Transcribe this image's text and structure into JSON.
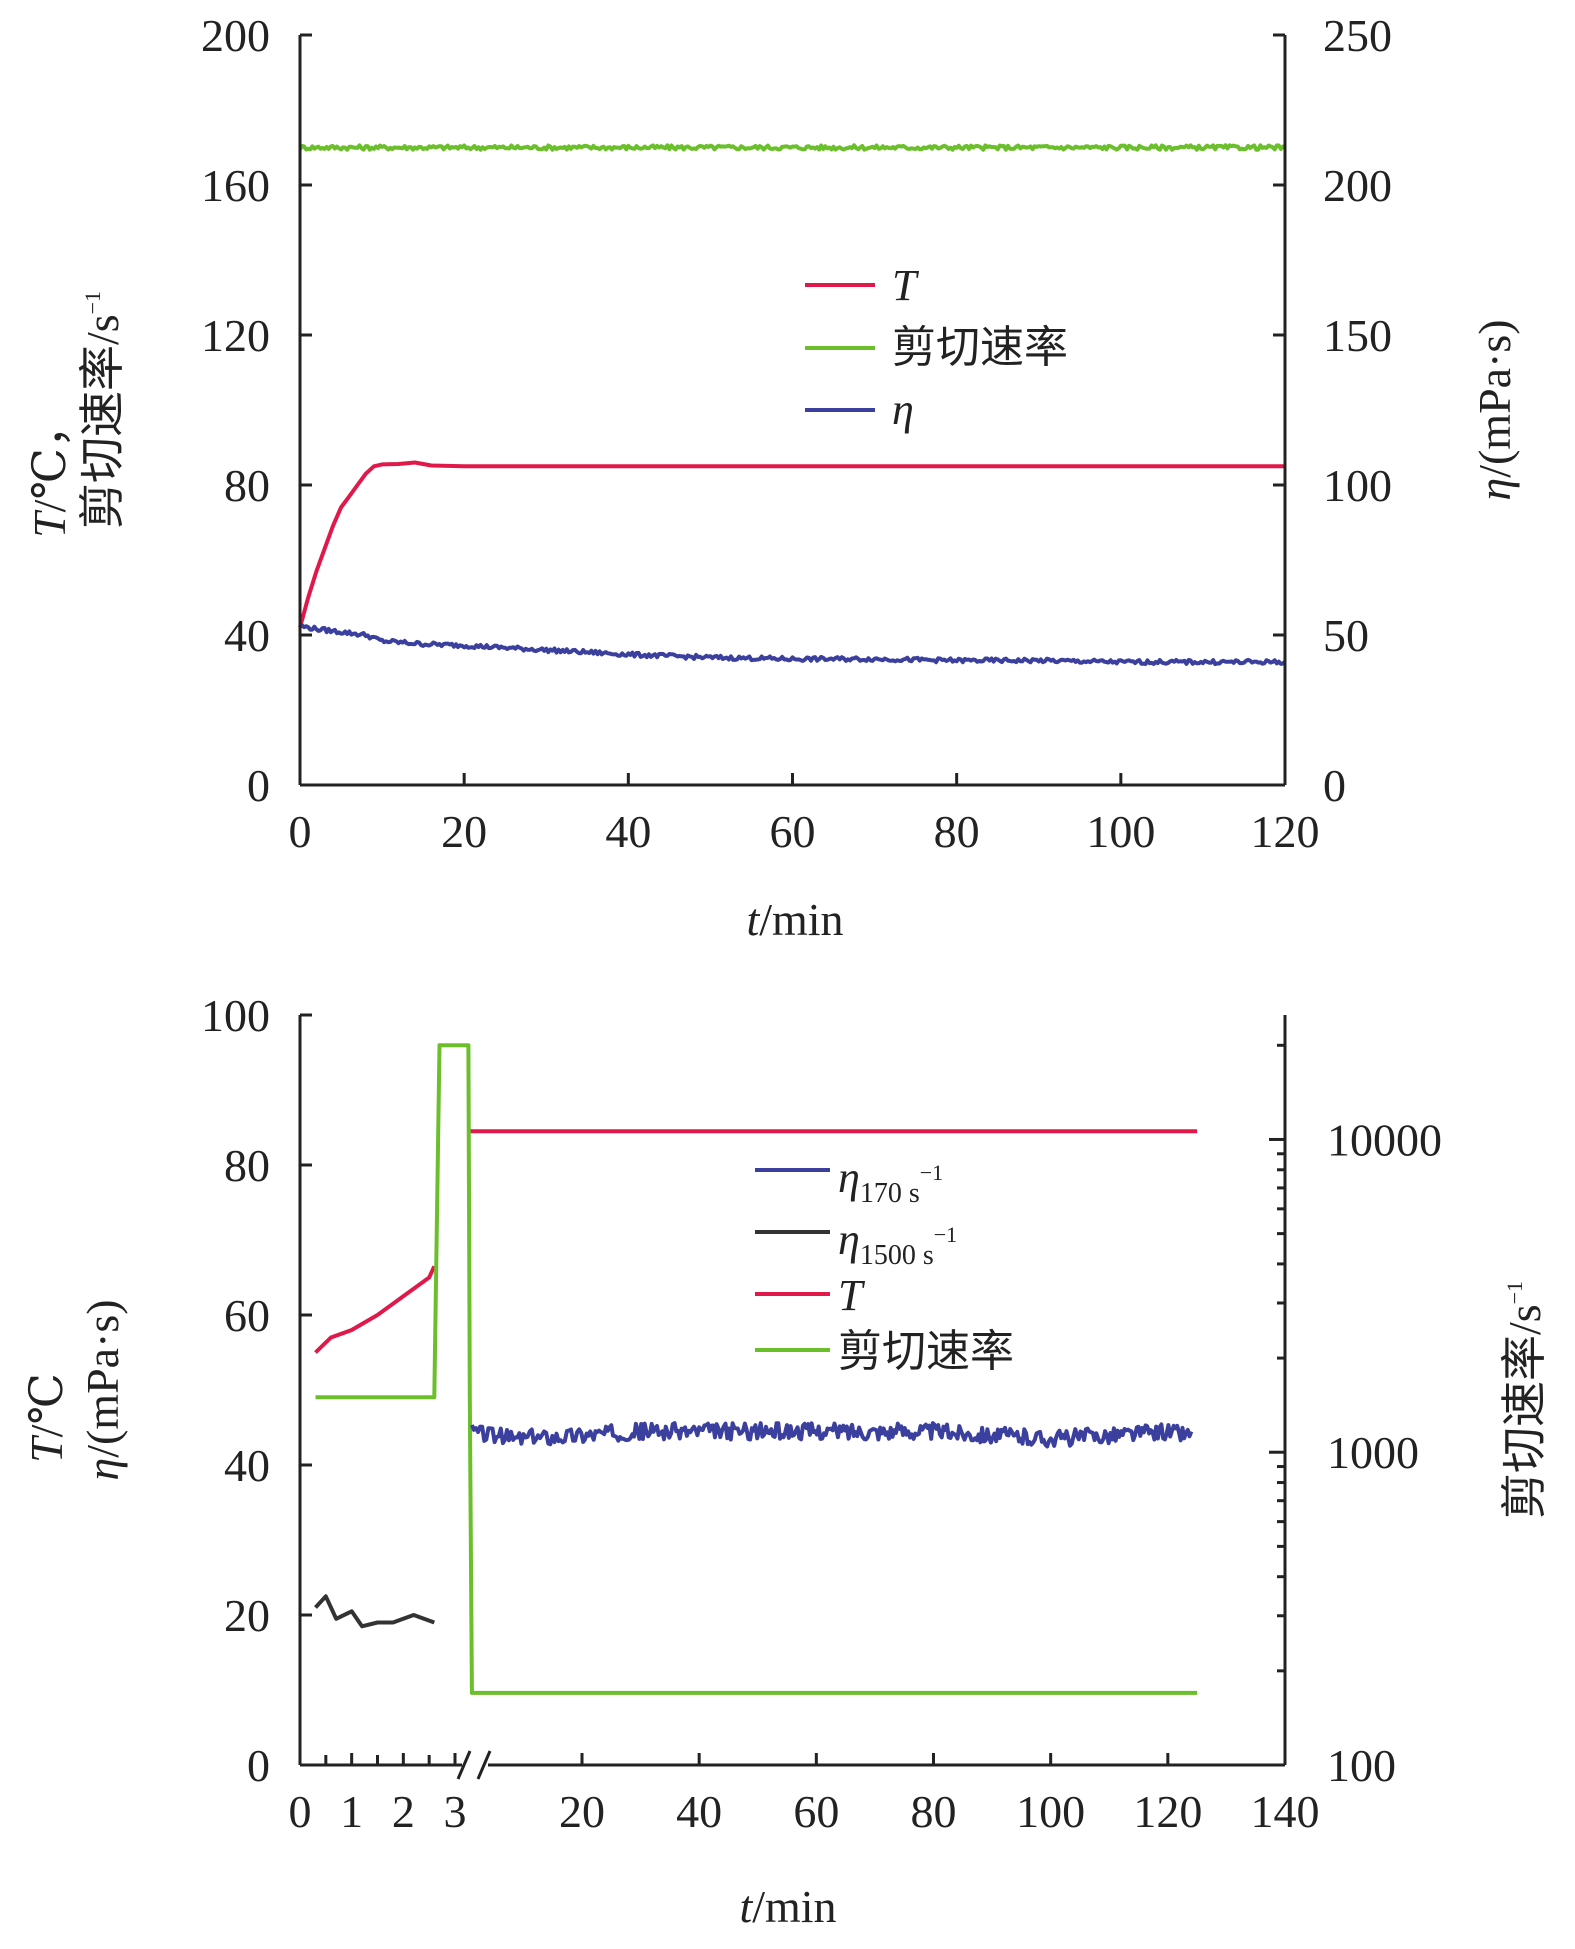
{
  "colors": {
    "axis": "#222222",
    "T": "#e0194a",
    "shear": "#6abf2a",
    "eta": "#3b3f9e",
    "eta1500": "#333333",
    "T_bottom": "#d81b60"
  },
  "chart_data": [
    {
      "type": "line",
      "x_label": {
        "italic": "t",
        "rest": "/min"
      },
      "y_left_label": {
        "line1_italic": "T",
        "line1_rest": "/℃，",
        "line2": "剪切速率/s",
        "line2_sup": "−1"
      },
      "y_right_label": {
        "italic": "η",
        "rest": "/(mPa·s)"
      },
      "xlim": [
        0,
        120
      ],
      "ylim_left": [
        0,
        200
      ],
      "ylim_right": [
        0,
        250
      ],
      "x_ticks": [
        "0",
        "20",
        "40",
        "60",
        "80",
        "100",
        "120"
      ],
      "y_left_ticks": [
        "0",
        "40",
        "80",
        "120",
        "160",
        "200"
      ],
      "y_right_ticks": [
        "0",
        "50",
        "100",
        "150",
        "200",
        "250"
      ],
      "legend": [
        {
          "label": "T",
          "italic": true,
          "color_key": "T"
        },
        {
          "label": "剪切速率",
          "italic": false,
          "color_key": "shear"
        },
        {
          "label": "η",
          "italic": true,
          "color_key": "eta"
        }
      ],
      "series": [
        {
          "name": "T",
          "axis": "left",
          "color_key": "T",
          "x": [
            0,
            1,
            2,
            3,
            4,
            5,
            6,
            7,
            8,
            9,
            10,
            12,
            14,
            16,
            20,
            40,
            60,
            80,
            100,
            120
          ],
          "y": [
            42,
            50,
            57,
            63,
            69,
            74,
            77,
            80,
            83,
            85,
            85.5,
            85.6,
            86,
            85.2,
            85,
            85,
            85,
            85,
            85,
            85
          ]
        },
        {
          "name": "剪切速率",
          "axis": "left",
          "color_key": "shear",
          "x": [
            0,
            120
          ],
          "y": [
            170,
            170
          ],
          "noise": 0.6
        },
        {
          "name": "η",
          "axis": "right",
          "color_key": "eta",
          "x": [
            0,
            2,
            5,
            8,
            10,
            15,
            20,
            30,
            40,
            50,
            60,
            70,
            80,
            90,
            100,
            110,
            120
          ],
          "y": [
            53,
            52,
            51,
            50,
            48,
            47,
            46.5,
            45,
            43.5,
            42.5,
            42,
            42,
            41.5,
            41.5,
            41,
            41,
            41
          ],
          "noise": 0.7
        }
      ]
    },
    {
      "type": "line",
      "x_label": {
        "italic": "t",
        "rest": "/min"
      },
      "y_left_label": {
        "line1_italic": "T",
        "line1_rest": "/℃",
        "line2_italic": "η",
        "line2_rest": "/(mPa·s)"
      },
      "y_right_label": {
        "text": "剪切速率/s",
        "sup": "−1"
      },
      "y_right_scale": "log",
      "ylim_left": [
        0,
        100
      ],
      "ylim_right": [
        100,
        25000
      ],
      "x_ticks_zoom": [
        "0",
        "1",
        "2",
        "3"
      ],
      "x_ticks_main": [
        "20",
        "40",
        "60",
        "80",
        "100",
        "120",
        "140"
      ],
      "y_left_ticks": [
        "0",
        "20",
        "40",
        "60",
        "80",
        "100"
      ],
      "y_right_ticks": [
        "100",
        "1000",
        "10000"
      ],
      "axis_break": true,
      "legend": [
        {
          "label": "η",
          "sub": "170 s",
          "sup": "−1",
          "color_key": "eta"
        },
        {
          "label": "η",
          "sub": "1500 s",
          "sup": "−1",
          "color_key": "eta1500"
        },
        {
          "label": "T",
          "italic": true,
          "color_key": "T"
        },
        {
          "label": "剪切速率",
          "italic": false,
          "color_key": "shear"
        }
      ],
      "series": [
        {
          "name": "T",
          "axis": "left",
          "color_key": "T",
          "segments": [
            {
              "x": [
                0.3,
                0.6,
                1.0,
                1.5,
                2.0,
                2.5,
                2.6
              ],
              "y": [
                55,
                57,
                58,
                60,
                62.5,
                65,
                66.5
              ]
            },
            {
              "x": [
                3.3,
                125
              ],
              "y": [
                84.5,
                84.5
              ]
            }
          ]
        },
        {
          "name": "剪切速率",
          "axis": "right",
          "color_key": "shear",
          "x": [
            0.3,
            2.6,
            2.7,
            3.5,
            3.7,
            4.0,
            125
          ],
          "y": [
            1500,
            1500,
            20000,
            20000,
            1500,
            170,
            170
          ]
        },
        {
          "name": "η 1500",
          "axis": "left",
          "color_key": "eta1500",
          "x": [
            0.3,
            0.5,
            0.7,
            1.0,
            1.2,
            1.5,
            1.8,
            2.0,
            2.2,
            2.4,
            2.6
          ],
          "y": [
            21,
            22.5,
            19.5,
            20.5,
            18.5,
            19,
            19,
            19.5,
            20,
            19.5,
            19
          ]
        },
        {
          "name": "η 170",
          "axis": "left",
          "color_key": "eta",
          "x": [
            4,
            10,
            20,
            30,
            40,
            50,
            60,
            70,
            80,
            90,
            100,
            110,
            120,
            124
          ],
          "y": [
            44.5,
            43.5,
            44,
            44.5,
            44.5,
            44.5,
            44.5,
            44.5,
            44.5,
            44,
            43.5,
            44,
            44.5,
            44
          ],
          "noise": 1.1
        }
      ]
    }
  ]
}
